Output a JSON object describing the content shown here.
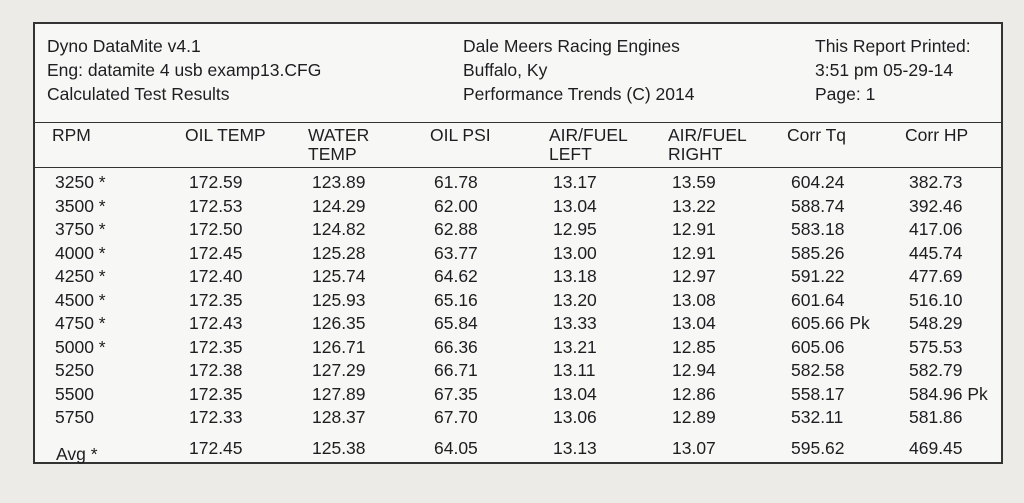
{
  "header": {
    "left": [
      "Dyno DataMite v4.1",
      "Eng: datamite 4 usb examp13.CFG",
      "Calculated Test Results"
    ],
    "center": [
      "Dale Meers Racing Engines",
      "Buffalo, Ky",
      "Performance Trends (C) 2014"
    ],
    "right": [
      "This Report Printed:",
      "3:51 pm 05-29-14",
      "Page: 1"
    ]
  },
  "table": {
    "columns": [
      "RPM",
      "OIL TEMP",
      "WATER TEMP",
      "OIL PSI",
      "AIR/FUEL LEFT",
      "AIR/FUEL RIGHT",
      "Corr Tq",
      "Corr HP"
    ],
    "rows": [
      [
        "3250 *",
        "172.59",
        "123.89",
        "61.78",
        "13.17",
        "13.59",
        "604.24",
        "382.73"
      ],
      [
        "3500 *",
        "172.53",
        "124.29",
        "62.00",
        "13.04",
        "13.22",
        "588.74",
        "392.46"
      ],
      [
        "3750 *",
        "172.50",
        "124.82",
        "62.88",
        "12.95",
        "12.91",
        "583.18",
        "417.06"
      ],
      [
        "4000 *",
        "172.45",
        "125.28",
        "63.77",
        "13.00",
        "12.91",
        "585.26",
        "445.74"
      ],
      [
        "4250 *",
        "172.40",
        "125.74",
        "64.62",
        "13.18",
        "12.97",
        "591.22",
        "477.69"
      ],
      [
        "4500 *",
        "172.35",
        "125.93",
        "65.16",
        "13.20",
        "13.08",
        "601.64",
        "516.10"
      ],
      [
        "4750 *",
        "172.43",
        "126.35",
        "65.84",
        "13.33",
        "13.04",
        "605.66 Pk",
        "548.29"
      ],
      [
        "5000 *",
        "172.35",
        "126.71",
        "66.36",
        "13.21",
        "12.85",
        "605.06",
        "575.53"
      ],
      [
        "5250",
        "172.38",
        "127.29",
        "66.71",
        "13.11",
        "12.94",
        "582.58",
        "582.79"
      ],
      [
        "5500",
        "172.35",
        "127.89",
        "67.35",
        "13.04",
        "12.86",
        "558.17",
        "584.96 Pk"
      ],
      [
        "5750",
        "172.33",
        "128.37",
        "67.70",
        "13.06",
        "12.89",
        "532.11",
        "581.86"
      ]
    ],
    "average": [
      "Avg *",
      "172.45",
      "125.38",
      "64.05",
      "13.13",
      "13.07",
      "595.62",
      "469.45"
    ]
  }
}
